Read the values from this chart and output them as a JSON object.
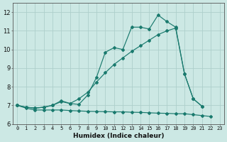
{
  "xlabel": "Humidex (Indice chaleur)",
  "color": "#1a7a6e",
  "bg_color": "#cce8e4",
  "grid_color": "#aecfcb",
  "ylim": [
    6.0,
    12.5
  ],
  "xlim": [
    -0.5,
    23.5
  ],
  "yticks": [
    6,
    7,
    8,
    9,
    10,
    11,
    12
  ],
  "xticks": [
    0,
    1,
    2,
    3,
    4,
    5,
    6,
    7,
    8,
    9,
    10,
    11,
    12,
    13,
    14,
    15,
    16,
    17,
    18,
    19,
    20,
    21,
    22,
    23
  ],
  "line_jagged_x": [
    0,
    1,
    2,
    3,
    4,
    5,
    6,
    7,
    8,
    9,
    10,
    11,
    12,
    13,
    14,
    15,
    16,
    17,
    18,
    19,
    20,
    21
  ],
  "line_jagged_y": [
    7.0,
    6.9,
    6.85,
    6.9,
    7.0,
    7.25,
    7.1,
    7.05,
    7.55,
    8.5,
    9.85,
    10.1,
    10.0,
    11.2,
    11.2,
    11.1,
    11.85,
    11.5,
    11.2,
    8.7,
    7.35,
    6.95
  ],
  "line_diagonal_x": [
    0,
    1,
    2,
    3,
    4,
    5,
    6,
    7,
    8,
    9,
    10,
    11,
    12,
    13,
    14,
    15,
    16,
    17,
    18,
    19,
    20,
    21
  ],
  "line_diagonal_y": [
    7.0,
    6.9,
    6.85,
    6.9,
    7.0,
    7.2,
    7.1,
    7.35,
    7.7,
    8.25,
    8.75,
    9.2,
    9.55,
    9.9,
    10.2,
    10.5,
    10.8,
    11.0,
    11.15,
    8.7,
    7.35,
    6.95
  ],
  "line_bottom_x": [
    0,
    1,
    2,
    3,
    4,
    5,
    6,
    7,
    8,
    9,
    10,
    11,
    12,
    13,
    14,
    15,
    16,
    17,
    18,
    19,
    20,
    21,
    22
  ],
  "line_bottom_y": [
    7.0,
    6.85,
    6.75,
    6.75,
    6.75,
    6.75,
    6.72,
    6.7,
    6.68,
    6.67,
    6.66,
    6.65,
    6.65,
    6.63,
    6.62,
    6.6,
    6.58,
    6.57,
    6.55,
    6.55,
    6.5,
    6.45,
    6.4
  ]
}
